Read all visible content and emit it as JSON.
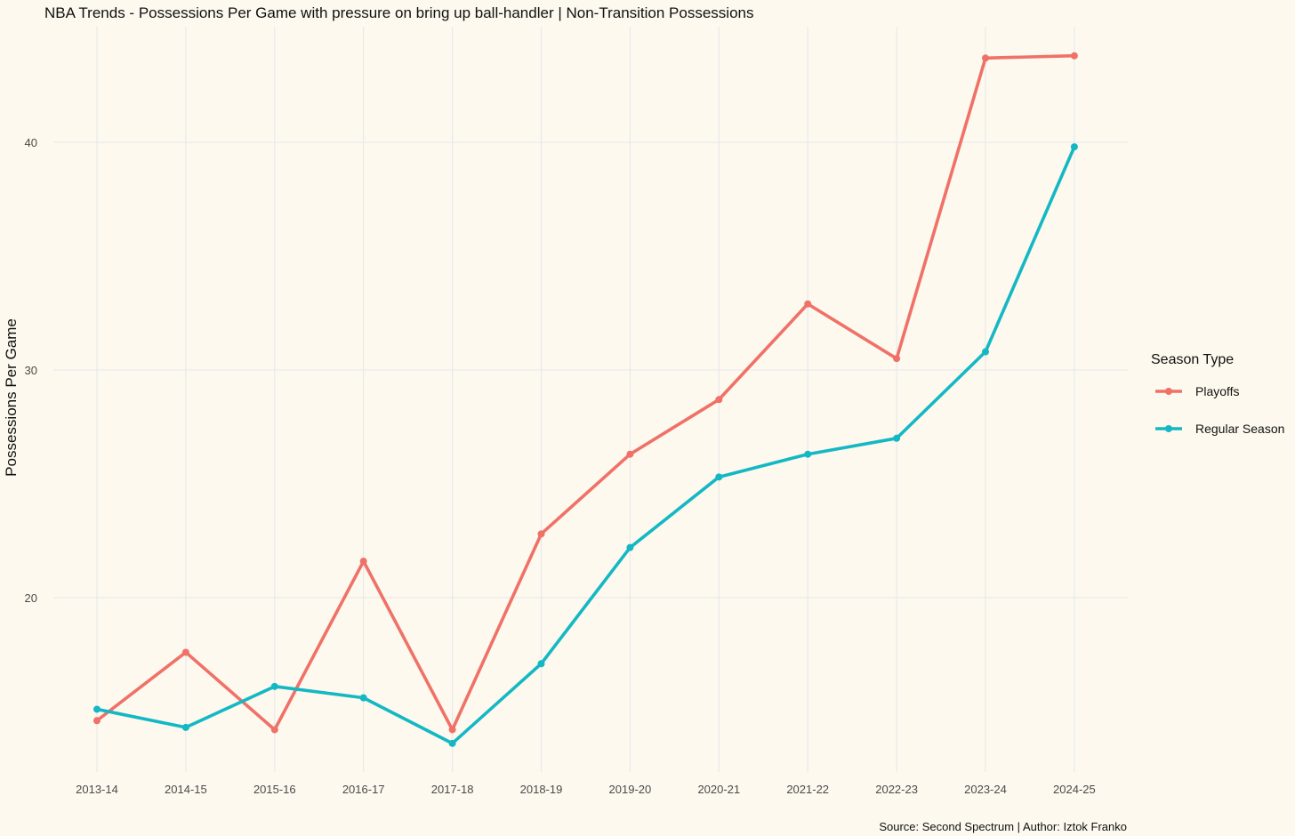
{
  "chart_data": {
    "type": "line",
    "title": "NBA Trends - Possessions Per Game with pressure on bring up ball-handler | Non-Transition Possessions",
    "xlabel": "",
    "ylabel": "Possessions Per Game",
    "categories": [
      "2013-14",
      "2014-15",
      "2015-16",
      "2016-17",
      "2017-18",
      "2018-19",
      "2019-20",
      "2020-21",
      "2021-22",
      "2022-23",
      "2023-24",
      "2024-25"
    ],
    "ylim": [
      13.2,
      45.2
    ],
    "yticks": [
      20,
      30,
      40
    ],
    "grid": true,
    "legend": {
      "title": "Season Type",
      "placement": "right"
    },
    "series": [
      {
        "name": "Playoffs",
        "color": "#f07167",
        "values": [
          14.6,
          17.6,
          14.2,
          21.6,
          14.2,
          22.8,
          26.3,
          28.7,
          32.9,
          30.5,
          43.7,
          43.8
        ]
      },
      {
        "name": "Regular Season",
        "color": "#14b8c4",
        "values": [
          15.1,
          14.3,
          16.1,
          15.6,
          13.6,
          17.1,
          22.2,
          25.3,
          26.3,
          27.0,
          30.8,
          39.8
        ]
      }
    ],
    "caption": "Source: Second Spectrum | Author: Iztok Franko"
  }
}
